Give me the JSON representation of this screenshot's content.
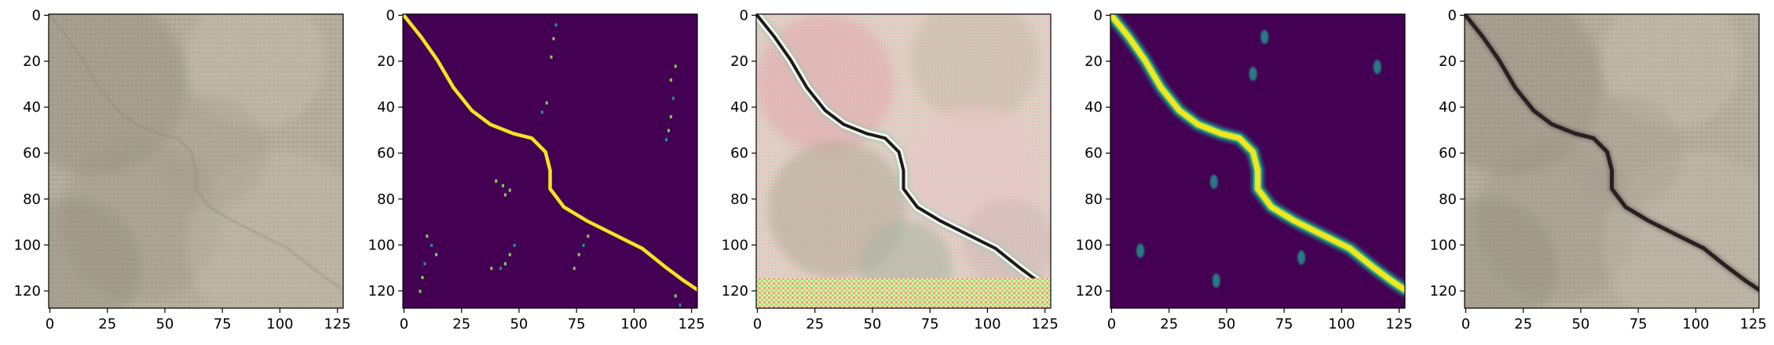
{
  "axes": {
    "x_ticks": [
      "0",
      "25",
      "50",
      "75",
      "100",
      "125"
    ],
    "y_ticks": [
      "0",
      "20",
      "40",
      "60",
      "80",
      "100",
      "120"
    ],
    "x_tick_values": [
      0,
      25,
      50,
      75,
      100,
      125
    ],
    "y_tick_values": [
      0,
      20,
      40,
      60,
      80,
      100,
      120
    ],
    "extent": [
      0,
      128
    ]
  },
  "panels": [
    {
      "id": "input-photo",
      "kind": "photo",
      "crack": false
    },
    {
      "id": "ground-truth-mask",
      "kind": "mask",
      "crack": true
    },
    {
      "id": "generated-image",
      "kind": "synthetic",
      "crack": true
    },
    {
      "id": "predicted-mask",
      "kind": "heatmap",
      "crack": true
    },
    {
      "id": "overlay-photo",
      "kind": "photo",
      "crack": true
    }
  ],
  "colors": {
    "mask_bg": "#440154",
    "mask_fg": "#f5e51f",
    "mask_mid": "#21918c",
    "photo_base": "#b2ab9c",
    "crack": "#2a2022"
  },
  "crack_path_data": [
    [
      0,
      0
    ],
    [
      8,
      10
    ],
    [
      15,
      20
    ],
    [
      22,
      32
    ],
    [
      30,
      42
    ],
    [
      38,
      48
    ],
    [
      48,
      52
    ],
    [
      56,
      54
    ],
    [
      62,
      60
    ],
    [
      64,
      68
    ],
    [
      64,
      76
    ],
    [
      70,
      84
    ],
    [
      80,
      90
    ],
    [
      92,
      96
    ],
    [
      104,
      102
    ],
    [
      114,
      110
    ],
    [
      122,
      116
    ],
    [
      128,
      120
    ]
  ],
  "mask_spots": [
    [
      66,
      4
    ],
    [
      65,
      10
    ],
    [
      64,
      18
    ],
    [
      62,
      38
    ],
    [
      60,
      42
    ],
    [
      118,
      22
    ],
    [
      116,
      28
    ],
    [
      117,
      36
    ],
    [
      116,
      44
    ],
    [
      115,
      50
    ],
    [
      114,
      54
    ],
    [
      40,
      72
    ],
    [
      43,
      74
    ],
    [
      46,
      76
    ],
    [
      44,
      78
    ],
    [
      10,
      96
    ],
    [
      12,
      100
    ],
    [
      14,
      104
    ],
    [
      9,
      108
    ],
    [
      8,
      114
    ],
    [
      7,
      120
    ],
    [
      38,
      110
    ],
    [
      42,
      110
    ],
    [
      44,
      108
    ],
    [
      46,
      104
    ],
    [
      48,
      100
    ],
    [
      76,
      104
    ],
    [
      78,
      100
    ],
    [
      80,
      96
    ],
    [
      74,
      110
    ],
    [
      120,
      126
    ],
    [
      118,
      122
    ]
  ],
  "heat_spots": [
    [
      67,
      10
    ],
    [
      62,
      26
    ],
    [
      45,
      73
    ],
    [
      13,
      103
    ],
    [
      46,
      116
    ],
    [
      83,
      106
    ],
    [
      116,
      23
    ]
  ]
}
